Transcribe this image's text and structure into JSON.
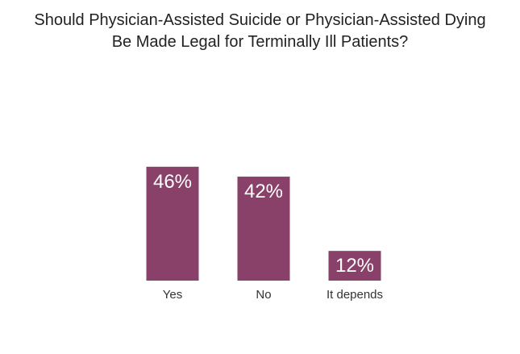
{
  "chart_data": {
    "type": "bar",
    "title_lines": [
      "Should Physician-Assisted Suicide or Physician-Assisted Dying",
      "Be Made Legal for Terminally Ill Patients?"
    ],
    "categories": [
      "Yes",
      "No",
      "It depends"
    ],
    "values": [
      46,
      42,
      12
    ],
    "value_labels": [
      "46%",
      "42%",
      "12%"
    ],
    "xlabel": "",
    "ylabel": "",
    "ylim": [
      0,
      100
    ],
    "grid": false,
    "legend": "none",
    "bar_color": "#8a4169"
  }
}
